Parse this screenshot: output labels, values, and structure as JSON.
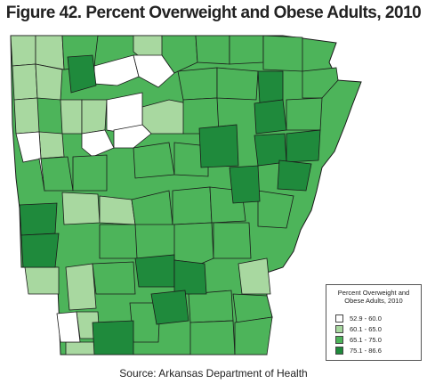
{
  "title": "Figure 42. Percent Overweight and Obese Adults, 2010",
  "legend": {
    "title_line1": "Percent Overweight and",
    "title_line2": "Obese Adults, 2010",
    "items": [
      {
        "label": "52.9 - 60.0",
        "color": "#ffffff"
      },
      {
        "label": "60.1 - 65.0",
        "color": "#a8d8a0"
      },
      {
        "label": "65.1 - 75.0",
        "color": "#4db45a"
      },
      {
        "label": "75.1 - 86.6",
        "color": "#1f8a3c"
      }
    ]
  },
  "source": "Source: Arkansas Department of Health",
  "map": {
    "region": "Arkansas counties",
    "border_color": "#1a1a1a"
  }
}
